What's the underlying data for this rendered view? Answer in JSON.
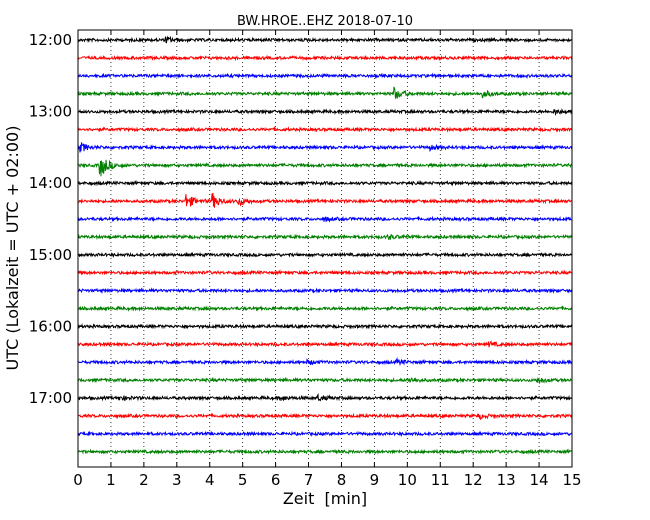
{
  "chart_data": {
    "type": "line",
    "title": "BW.HROE..EHZ 2018-07-10",
    "xlabel": "Zeit  [min]",
    "ylabel": "UTC (Lokalzeit = UTC + 02:00)",
    "xlim": [
      0,
      15
    ],
    "x_ticks": [
      "0",
      "1",
      "2",
      "3",
      "4",
      "5",
      "6",
      "7",
      "8",
      "9",
      "10",
      "11",
      "12",
      "13",
      "14",
      "15"
    ],
    "y_ticks": [
      "12:00",
      "13:00",
      "14:00",
      "15:00",
      "16:00",
      "17:00"
    ],
    "grid": "vertical dotted at every minute",
    "trace_interval_minutes": 15,
    "colors": [
      "#000000",
      "#ff0000",
      "#0000ff",
      "#008000"
    ],
    "traces": [
      {
        "start": "12:00",
        "color": "#000000",
        "events": [
          [
            2.7,
            0.6
          ]
        ]
      },
      {
        "start": "12:15",
        "color": "#ff0000",
        "events": []
      },
      {
        "start": "12:30",
        "color": "#0000ff",
        "events": []
      },
      {
        "start": "12:45",
        "color": "#008000",
        "events": [
          [
            9.6,
            1.5
          ],
          [
            12.3,
            0.8
          ]
        ]
      },
      {
        "start": "13:00",
        "color": "#000000",
        "events": [
          [
            14.5,
            0.5
          ]
        ]
      },
      {
        "start": "13:15",
        "color": "#ff0000",
        "events": []
      },
      {
        "start": "13:30",
        "color": "#0000ff",
        "events": [
          [
            0.1,
            1.0
          ],
          [
            10.7,
            0.5
          ]
        ]
      },
      {
        "start": "13:45",
        "color": "#008000",
        "events": [
          [
            0.7,
            2.6
          ]
        ]
      },
      {
        "start": "14:00",
        "color": "#000000",
        "events": []
      },
      {
        "start": "14:15",
        "color": "#ff0000",
        "events": [
          [
            3.3,
            1.6
          ],
          [
            4.1,
            1.7
          ],
          [
            4.9,
            1.0
          ]
        ]
      },
      {
        "start": "14:30",
        "color": "#0000ff",
        "events": [
          [
            7.5,
            0.4
          ]
        ]
      },
      {
        "start": "14:45",
        "color": "#008000",
        "events": [
          [
            9.4,
            0.5
          ]
        ]
      },
      {
        "start": "15:00",
        "color": "#000000",
        "events": []
      },
      {
        "start": "15:15",
        "color": "#ff0000",
        "events": []
      },
      {
        "start": "15:30",
        "color": "#0000ff",
        "events": []
      },
      {
        "start": "15:45",
        "color": "#008000",
        "events": []
      },
      {
        "start": "16:00",
        "color": "#000000",
        "events": []
      },
      {
        "start": "16:15",
        "color": "#ff0000",
        "events": [
          [
            12.5,
            0.5
          ]
        ]
      },
      {
        "start": "16:30",
        "color": "#0000ff",
        "events": [
          [
            7.0,
            0.4
          ],
          [
            9.7,
            0.5
          ]
        ]
      },
      {
        "start": "16:45",
        "color": "#008000",
        "events": [
          [
            10.1,
            0.5
          ],
          [
            14.0,
            0.6
          ]
        ]
      },
      {
        "start": "17:00",
        "color": "#000000",
        "events": [
          [
            1.3,
            0.5
          ],
          [
            6.2,
            0.5
          ],
          [
            7.3,
            0.6
          ]
        ]
      },
      {
        "start": "17:15",
        "color": "#ff0000",
        "events": [
          [
            12.2,
            0.5
          ]
        ]
      },
      {
        "start": "17:30",
        "color": "#0000ff",
        "events": []
      },
      {
        "start": "17:45",
        "color": "#008000",
        "events": []
      }
    ]
  }
}
